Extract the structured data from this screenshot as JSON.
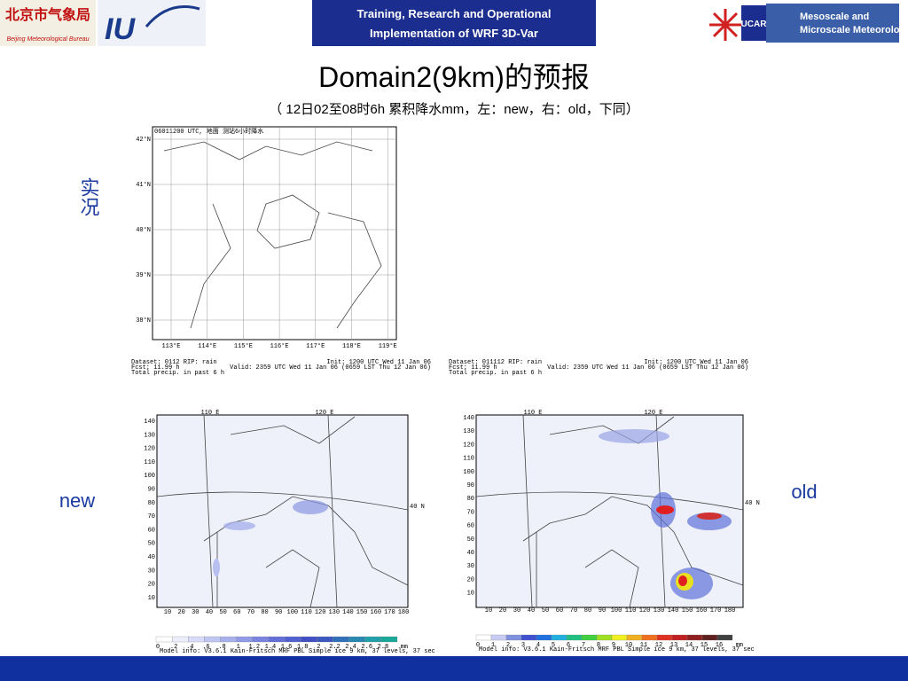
{
  "header": {
    "logo_left_cn": "北京市气象局",
    "logo_left_en": "Beijing Meteorological Bureau",
    "logo_iu": "IU",
    "center_lines": [
      "Training, Research and Operational",
      "Implementation of WRF 3D-Var"
    ],
    "ucar": "UCAR",
    "right_lines": [
      "Mesoscale and",
      "Microscale Meteorology"
    ]
  },
  "title": "Domain2(9km)的预报",
  "subtitle": "（ 12日02至08时6h 累积降水mm，左：new，右：old，下同）",
  "labels": {
    "obs": "实况",
    "new": "new",
    "old": "old"
  },
  "obs_map": {
    "header": "06011200 UTC, 地面 测站6小时降水",
    "lat_labels": [
      "42°N",
      "41°N",
      "40°N",
      "39°N",
      "38°N"
    ],
    "lon_labels": [
      "113°E",
      "114°E",
      "115°E",
      "116°E",
      "117°E",
      "118°E",
      "119°E"
    ]
  },
  "info_left": [
    "Dataset: 0112   RIP: rain",
    "Fcst:    11.99 h",
    "Total precip. in past 6 h",
    "Init: 1200 UTC Wed 11 Jan 06",
    "Valid: 2359 UTC Wed 11 Jan 06 (0659 LST Thu 12 Jan 06)"
  ],
  "info_right": [
    "Dataset: 011112   RIP: rain",
    "Fcst:    11.99 h",
    "Total precip. in past 6 h",
    "Init: 1200 UTC Wed 11 Jan 06",
    "Valid: 2359 UTC Wed 11 Jan 06 (0659 LST Thu 12 Jan 06)"
  ],
  "new_map": {
    "y_ticks": [
      140,
      130,
      120,
      110,
      100,
      90,
      80,
      70,
      60,
      50,
      40,
      30,
      20,
      10
    ],
    "x_ticks": [
      10,
      20,
      30,
      40,
      50,
      60,
      70,
      80,
      90,
      100,
      110,
      120,
      130,
      140,
      150,
      160,
      170,
      180
    ],
    "lon_labels": [
      "110 E",
      "120 E"
    ],
    "lat_label": "40 N",
    "colorbar_labels": [
      "0",
      ".2",
      ".4",
      ".6",
      ".8",
      "1",
      "1.2",
      "1.4",
      "1.6",
      "1.8",
      "2",
      "2.2",
      "2.4",
      "2.6",
      "2.8"
    ],
    "unit": "mm",
    "model_info": "Model info: V3.6.1  Kain-Fritsch  MRF PBL    Simple ice    9 km,  37 levels,  37 sec"
  },
  "old_map": {
    "y_ticks": [
      140,
      130,
      120,
      110,
      100,
      90,
      80,
      70,
      60,
      50,
      40,
      30,
      20,
      10
    ],
    "x_ticks": [
      10,
      20,
      30,
      40,
      50,
      60,
      70,
      80,
      90,
      100,
      110,
      120,
      130,
      140,
      150,
      160,
      170,
      180
    ],
    "lon_labels": [
      "110 E",
      "120 E"
    ],
    "lat_label": "40 N",
    "colorbar_labels": [
      "0",
      "1",
      "2",
      "3",
      "4",
      "5",
      "6",
      "7",
      "8",
      "9",
      "10",
      "11",
      "12",
      "13",
      "14",
      "15",
      "16"
    ],
    "unit": "mm",
    "model_info": "Model info: V3.6.1  Kain-Fritsch  MRF PBL    Simple ice    9 km,  37 levels,  37 sec"
  }
}
